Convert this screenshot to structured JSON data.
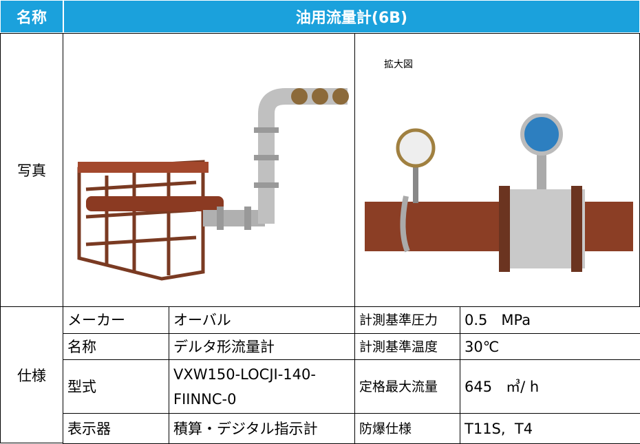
{
  "header": {
    "label": "名称",
    "title": "油用流量計(6B)"
  },
  "photo": {
    "label": "写真",
    "zoom_caption": "拡大図"
  },
  "spec": {
    "label": "仕様",
    "rows": [
      [
        "メーカー",
        "オーバル",
        "計測基準圧力",
        "0.5   MPa"
      ],
      [
        "名称",
        "デルタ形流量計",
        "計測基準温度",
        "30℃"
      ],
      [
        "型式",
        "VXW150-LOCJI-140-FIINNC-0",
        "定格最大流量",
        "645   ㎥/ h"
      ],
      [
        "表示器",
        "積算・デジタル指示計",
        "防爆仕様",
        "T11S,  T4"
      ]
    ]
  }
}
